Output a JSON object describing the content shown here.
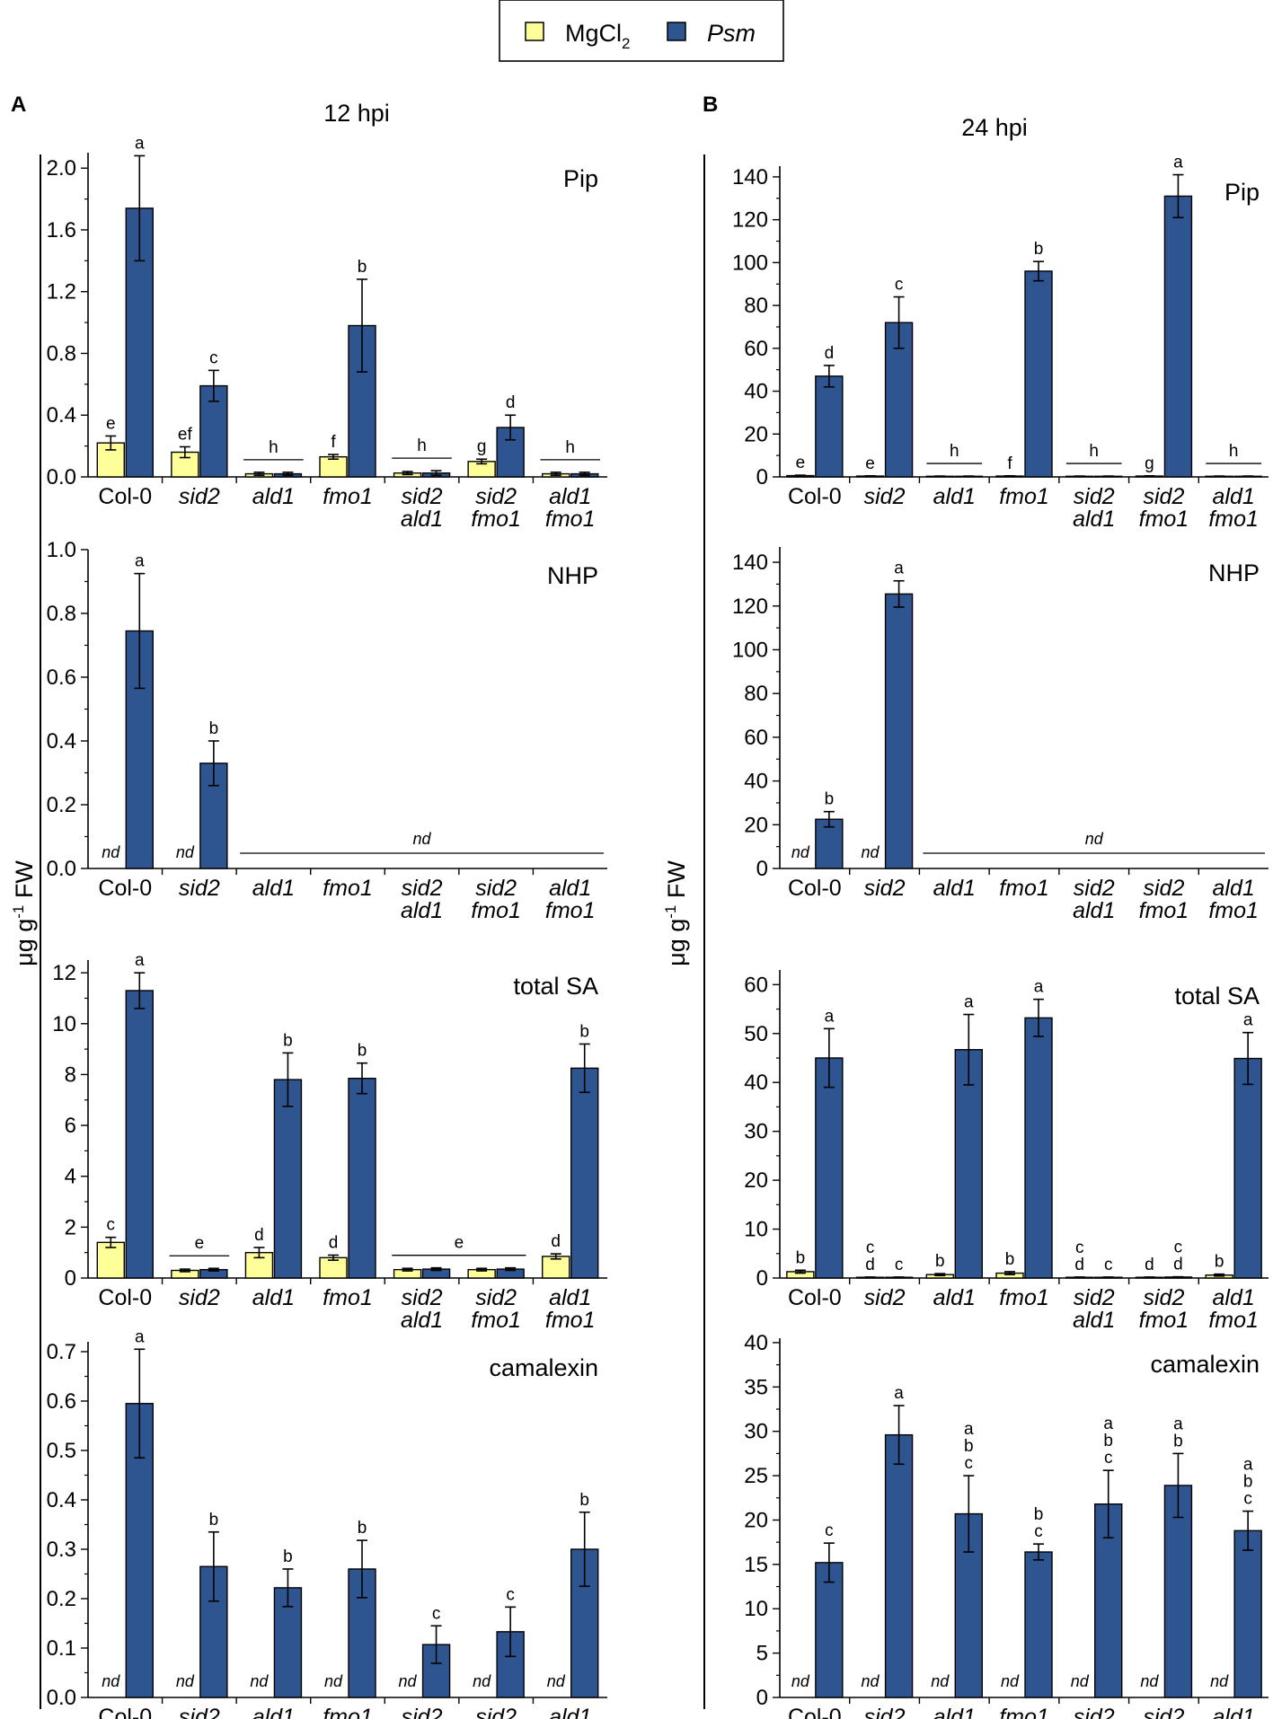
{
  "legend": {
    "items": [
      {
        "label": "MgCl",
        "subscript": "2",
        "italic": false,
        "color": "#ffff99"
      },
      {
        "label": "Psm",
        "subscript": "",
        "italic": true,
        "color": "#2e5590"
      }
    ]
  },
  "panel_letters": {
    "a": "A",
    "b": "B"
  },
  "panel_titles": {
    "a": "12 hpi",
    "b": "24 hpi"
  },
  "y_axis_label": {
    "prefix": "μg g",
    "sup": "-1",
    "suffix": " FW"
  },
  "categories": [
    {
      "line1": "Col-0",
      "line2": "",
      "italic": false
    },
    {
      "line1": "sid2",
      "line2": "",
      "italic": true
    },
    {
      "line1": "ald1",
      "line2": "",
      "italic": true
    },
    {
      "line1": "fmo1",
      "line2": "",
      "italic": true
    },
    {
      "line1": "sid2",
      "line2": "ald1",
      "italic": true
    },
    {
      "line1": "sid2",
      "line2": "fmo1",
      "italic": true
    },
    {
      "line1": "ald1",
      "line2": "fmo1",
      "italic": true
    }
  ],
  "nd_label": "nd",
  "colors": {
    "mgcl2": "#ffff99",
    "psm": "#2e5590"
  },
  "chart_data": [
    {
      "type": "bar",
      "panel": "A",
      "title": "Pip",
      "ylim": [
        0,
        2.1
      ],
      "ticks": [
        0.0,
        0.4,
        0.8,
        1.2,
        1.6,
        2.0
      ],
      "decimals": 1,
      "series": [
        {
          "name": "MgCl2",
          "values": [
            0.22,
            0.16,
            0.02,
            0.13,
            0.025,
            0.1,
            0.02
          ],
          "errors": [
            0.045,
            0.035,
            0.01,
            0.015,
            0.01,
            0.015,
            0.01
          ],
          "letters": [
            [
              "e"
            ],
            [
              "ef"
            ],
            [],
            [
              "f"
            ],
            [],
            [
              "g"
            ],
            []
          ],
          "nd": [
            false,
            false,
            false,
            false,
            false,
            false,
            false
          ]
        },
        {
          "name": "Psm",
          "values": [
            1.74,
            0.59,
            0.02,
            0.98,
            0.025,
            0.32,
            0.02
          ],
          "errors": [
            0.34,
            0.1,
            0.01,
            0.3,
            0.015,
            0.08,
            0.01
          ],
          "letters": [
            [
              "a"
            ],
            [
              "c"
            ],
            [],
            [
              "b"
            ],
            [],
            [
              "d"
            ],
            []
          ],
          "nd": [
            false,
            false,
            false,
            false,
            false,
            false,
            false
          ]
        }
      ],
      "group_letters": [
        {
          "group": 2,
          "letter": "h"
        },
        {
          "group": 4,
          "letter": "h"
        },
        {
          "group": 6,
          "letter": "h"
        }
      ],
      "span_nd": null
    },
    {
      "type": "bar",
      "panel": "A",
      "title": "NHP",
      "ylim": [
        0,
        1.0
      ],
      "ticks": [
        0.0,
        0.2,
        0.4,
        0.6,
        0.8,
        1.0
      ],
      "decimals": 1,
      "series": [
        {
          "name": "MgCl2",
          "values": [
            0,
            0,
            0,
            0,
            0,
            0,
            0
          ],
          "errors": [
            0,
            0,
            0,
            0,
            0,
            0,
            0
          ],
          "letters": [
            [],
            [],
            [],
            [],
            [],
            [],
            []
          ],
          "nd": [
            true,
            true,
            false,
            false,
            false,
            false,
            false
          ]
        },
        {
          "name": "Psm",
          "values": [
            0.745,
            0.33,
            0,
            0,
            0,
            0,
            0
          ],
          "errors": [
            0.18,
            0.07,
            0,
            0,
            0,
            0,
            0
          ],
          "letters": [
            [
              "a"
            ],
            [
              "b"
            ],
            [],
            [],
            [],
            [],
            []
          ],
          "nd": [
            false,
            false,
            false,
            false,
            false,
            false,
            false
          ]
        }
      ],
      "group_letters": [],
      "span_nd": {
        "from": 2,
        "to": 6
      }
    },
    {
      "type": "bar",
      "panel": "A",
      "title": "total SA",
      "ylim": [
        0,
        12.5
      ],
      "ticks": [
        0,
        2,
        4,
        6,
        8,
        10,
        12
      ],
      "decimals": 0,
      "series": [
        {
          "name": "MgCl2",
          "values": [
            1.4,
            0.3,
            1.0,
            0.8,
            0.33,
            0.33,
            0.85
          ],
          "errors": [
            0.2,
            0.05,
            0.2,
            0.1,
            0.05,
            0.05,
            0.1
          ],
          "letters": [
            [
              "c"
            ],
            [],
            [
              "d"
            ],
            [
              "d"
            ],
            [],
            [],
            [
              "d"
            ]
          ],
          "nd": [
            false,
            false,
            false,
            false,
            false,
            false,
            false
          ]
        },
        {
          "name": "Psm",
          "values": [
            11.3,
            0.33,
            7.8,
            7.85,
            0.35,
            0.35,
            8.25
          ],
          "errors": [
            0.7,
            0.05,
            1.05,
            0.6,
            0.05,
            0.05,
            0.95
          ],
          "letters": [
            [
              "a"
            ],
            [],
            [
              "b"
            ],
            [
              "b"
            ],
            [],
            [],
            [
              "b"
            ]
          ],
          "nd": [
            false,
            false,
            false,
            false,
            false,
            false,
            false
          ]
        }
      ],
      "group_letters": [
        {
          "group": 1,
          "letter": "e"
        },
        {
          "group": 4,
          "to": 5,
          "letter": "e"
        }
      ],
      "span_nd": null
    },
    {
      "type": "bar",
      "panel": "A",
      "title": "camalexin",
      "ylim": [
        0,
        0.72
      ],
      "ticks": [
        0.0,
        0.1,
        0.2,
        0.3,
        0.4,
        0.5,
        0.6,
        0.7
      ],
      "decimals": 1,
      "series": [
        {
          "name": "MgCl2",
          "values": [
            0,
            0,
            0,
            0,
            0,
            0,
            0
          ],
          "errors": [
            0,
            0,
            0,
            0,
            0,
            0,
            0
          ],
          "letters": [
            [],
            [],
            [],
            [],
            [],
            [],
            []
          ],
          "nd": [
            true,
            true,
            true,
            true,
            true,
            true,
            true
          ]
        },
        {
          "name": "Psm",
          "values": [
            0.595,
            0.265,
            0.222,
            0.26,
            0.107,
            0.133,
            0.3
          ],
          "errors": [
            0.11,
            0.07,
            0.038,
            0.058,
            0.038,
            0.05,
            0.075
          ],
          "letters": [
            [
              "a"
            ],
            [
              "b"
            ],
            [
              "b"
            ],
            [
              "b"
            ],
            [
              "c"
            ],
            [
              "c"
            ],
            [
              "b"
            ]
          ],
          "nd": [
            false,
            false,
            false,
            false,
            false,
            false,
            false
          ]
        }
      ],
      "group_letters": [],
      "span_nd": null
    },
    {
      "type": "bar",
      "panel": "B",
      "title": "Pip",
      "ylim": [
        0,
        145
      ],
      "ticks": [
        0,
        20,
        40,
        60,
        80,
        100,
        120,
        140
      ],
      "decimals": 0,
      "series": [
        {
          "name": "MgCl2",
          "values": [
            0.6,
            0.4,
            0.3,
            0.4,
            0.3,
            0.4,
            0.3
          ],
          "errors": [
            0.2,
            0.1,
            0.1,
            0.1,
            0.1,
            0.1,
            0.1
          ],
          "letters": [
            [
              "e"
            ],
            [
              "e"
            ],
            [],
            [
              "f"
            ],
            [],
            [
              "g"
            ],
            []
          ],
          "nd": [
            false,
            false,
            false,
            false,
            false,
            false,
            false
          ]
        },
        {
          "name": "Psm",
          "values": [
            47,
            72,
            0.3,
            96,
            0.3,
            131,
            0.3
          ],
          "errors": [
            5,
            12,
            0.1,
            4.5,
            0.1,
            10,
            0.1
          ],
          "letters": [
            [
              "d"
            ],
            [
              "c"
            ],
            [],
            [
              "b"
            ],
            [],
            [
              "a"
            ],
            []
          ],
          "nd": [
            false,
            false,
            false,
            false,
            false,
            false,
            false
          ]
        }
      ],
      "group_letters": [
        {
          "group": 2,
          "letter": "h"
        },
        {
          "group": 4,
          "letter": "h"
        },
        {
          "group": 6,
          "letter": "h"
        }
      ],
      "span_nd": null
    },
    {
      "type": "bar",
      "panel": "B",
      "title": "NHP",
      "ylim": [
        0,
        147
      ],
      "ticks": [
        0,
        20,
        40,
        60,
        80,
        100,
        120,
        140
      ],
      "decimals": 0,
      "series": [
        {
          "name": "MgCl2",
          "values": [
            0,
            0,
            0,
            0,
            0,
            0,
            0
          ],
          "errors": [
            0,
            0,
            0,
            0,
            0,
            0,
            0
          ],
          "letters": [
            [],
            [],
            [],
            [],
            [],
            [],
            []
          ],
          "nd": [
            true,
            true,
            false,
            false,
            false,
            false,
            false
          ]
        },
        {
          "name": "Psm",
          "values": [
            22.5,
            125.5,
            0,
            0,
            0,
            0,
            0
          ],
          "errors": [
            3.5,
            6,
            0,
            0,
            0,
            0,
            0
          ],
          "letters": [
            [
              "b"
            ],
            [
              "a"
            ],
            [],
            [],
            [],
            [],
            []
          ],
          "nd": [
            false,
            false,
            false,
            false,
            false,
            false,
            false
          ]
        }
      ],
      "group_letters": [],
      "span_nd": {
        "from": 2,
        "to": 6
      }
    },
    {
      "type": "bar",
      "panel": "B",
      "title": "total SA",
      "ylim": [
        0,
        63
      ],
      "ticks": [
        0,
        10,
        20,
        30,
        40,
        50,
        60
      ],
      "decimals": 0,
      "series": [
        {
          "name": "MgCl2",
          "values": [
            1.3,
            0.15,
            0.7,
            1.0,
            0.15,
            0.15,
            0.6
          ],
          "errors": [
            0.3,
            0.05,
            0.2,
            0.3,
            0.05,
            0.05,
            0.2
          ],
          "letters": [
            [
              "b"
            ],
            [
              "c",
              "d"
            ],
            [
              "b"
            ],
            [
              "b"
            ],
            [
              "c",
              "d"
            ],
            [
              "d"
            ],
            [
              "b"
            ]
          ],
          "nd": [
            false,
            false,
            false,
            false,
            false,
            false,
            false
          ]
        },
        {
          "name": "Psm",
          "values": [
            45,
            0.15,
            46.7,
            53.2,
            0.15,
            0.2,
            44.9
          ],
          "errors": [
            6,
            0.05,
            7.2,
            3.8,
            0.05,
            0.05,
            5.3
          ],
          "letters": [
            [
              "a"
            ],
            [
              "c"
            ],
            [
              "a"
            ],
            [
              "a"
            ],
            [
              "c"
            ],
            [
              "c",
              "d"
            ],
            [
              "a"
            ]
          ],
          "nd": [
            false,
            false,
            false,
            false,
            false,
            false,
            false
          ]
        }
      ],
      "group_letters": [],
      "span_nd": null
    },
    {
      "type": "bar",
      "panel": "B",
      "title": "camalexin",
      "ylim": [
        0,
        40.5
      ],
      "ticks": [
        0,
        5,
        10,
        15,
        20,
        25,
        30,
        35,
        40
      ],
      "decimals": 0,
      "series": [
        {
          "name": "MgCl2",
          "values": [
            0,
            0,
            0,
            0,
            0,
            0,
            0
          ],
          "errors": [
            0,
            0,
            0,
            0,
            0,
            0,
            0
          ],
          "letters": [
            [],
            [],
            [],
            [],
            [],
            [],
            []
          ],
          "nd": [
            true,
            true,
            true,
            true,
            true,
            true,
            true
          ]
        },
        {
          "name": "Psm",
          "values": [
            15.2,
            29.6,
            20.7,
            16.4,
            21.8,
            23.9,
            18.8
          ],
          "errors": [
            2.2,
            3.3,
            4.3,
            0.9,
            3.8,
            3.6,
            2.2
          ],
          "letters": [
            [
              "c"
            ],
            [
              "a"
            ],
            [
              "a",
              "b",
              "c"
            ],
            [
              "b",
              "c"
            ],
            [
              "a",
              "b",
              "c"
            ],
            [
              "a",
              "b"
            ],
            [
              "a",
              "b",
              "c"
            ]
          ],
          "nd": [
            false,
            false,
            false,
            false,
            false,
            false,
            false
          ]
        }
      ],
      "group_letters": [],
      "span_nd": null
    }
  ]
}
